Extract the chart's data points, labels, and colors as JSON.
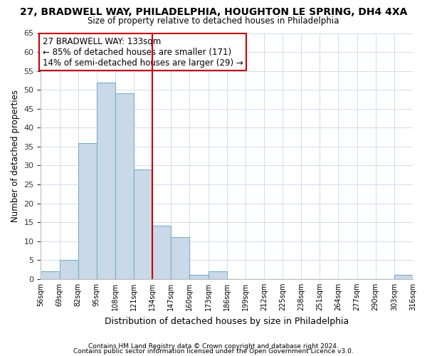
{
  "title": "27, BRADWELL WAY, PHILADELPHIA, HOUGHTON LE SPRING, DH4 4XA",
  "subtitle": "Size of property relative to detached houses in Philadelphia",
  "xlabel": "Distribution of detached houses by size in Philadelphia",
  "ylabel": "Number of detached properties",
  "bin_edges": [
    56,
    69,
    82,
    95,
    108,
    121,
    134,
    147,
    160,
    173,
    186,
    199,
    212,
    225,
    238,
    251,
    264,
    277,
    290,
    303,
    316
  ],
  "bar_heights": [
    2,
    5,
    36,
    52,
    49,
    29,
    14,
    11,
    1,
    2,
    0,
    0,
    0,
    0,
    0,
    0,
    0,
    0,
    0,
    1
  ],
  "bar_color": "#c9d9e8",
  "bar_edge_color": "#7baec8",
  "vline_x": 134,
  "vline_color": "#cc0000",
  "ylim": [
    0,
    65
  ],
  "yticks": [
    0,
    5,
    10,
    15,
    20,
    25,
    30,
    35,
    40,
    45,
    50,
    55,
    60,
    65
  ],
  "annotation_box_text": "27 BRADWELL WAY: 133sqm\n← 85% of detached houses are smaller (171)\n14% of semi-detached houses are larger (29) →",
  "annotation_box_color": "#cc0000",
  "footer_line1": "Contains HM Land Registry data © Crown copyright and database right 2024.",
  "footer_line2": "Contains public sector information licensed under the Open Government Licence v3.0.",
  "background_color": "#ffffff",
  "grid_color": "#c8d8e8",
  "tick_labels": [
    "56sqm",
    "69sqm",
    "82sqm",
    "95sqm",
    "108sqm",
    "121sqm",
    "134sqm",
    "147sqm",
    "160sqm",
    "173sqm",
    "186sqm",
    "199sqm",
    "212sqm",
    "225sqm",
    "238sqm",
    "251sqm",
    "264sqm",
    "277sqm",
    "290sqm",
    "303sqm",
    "316sqm"
  ]
}
